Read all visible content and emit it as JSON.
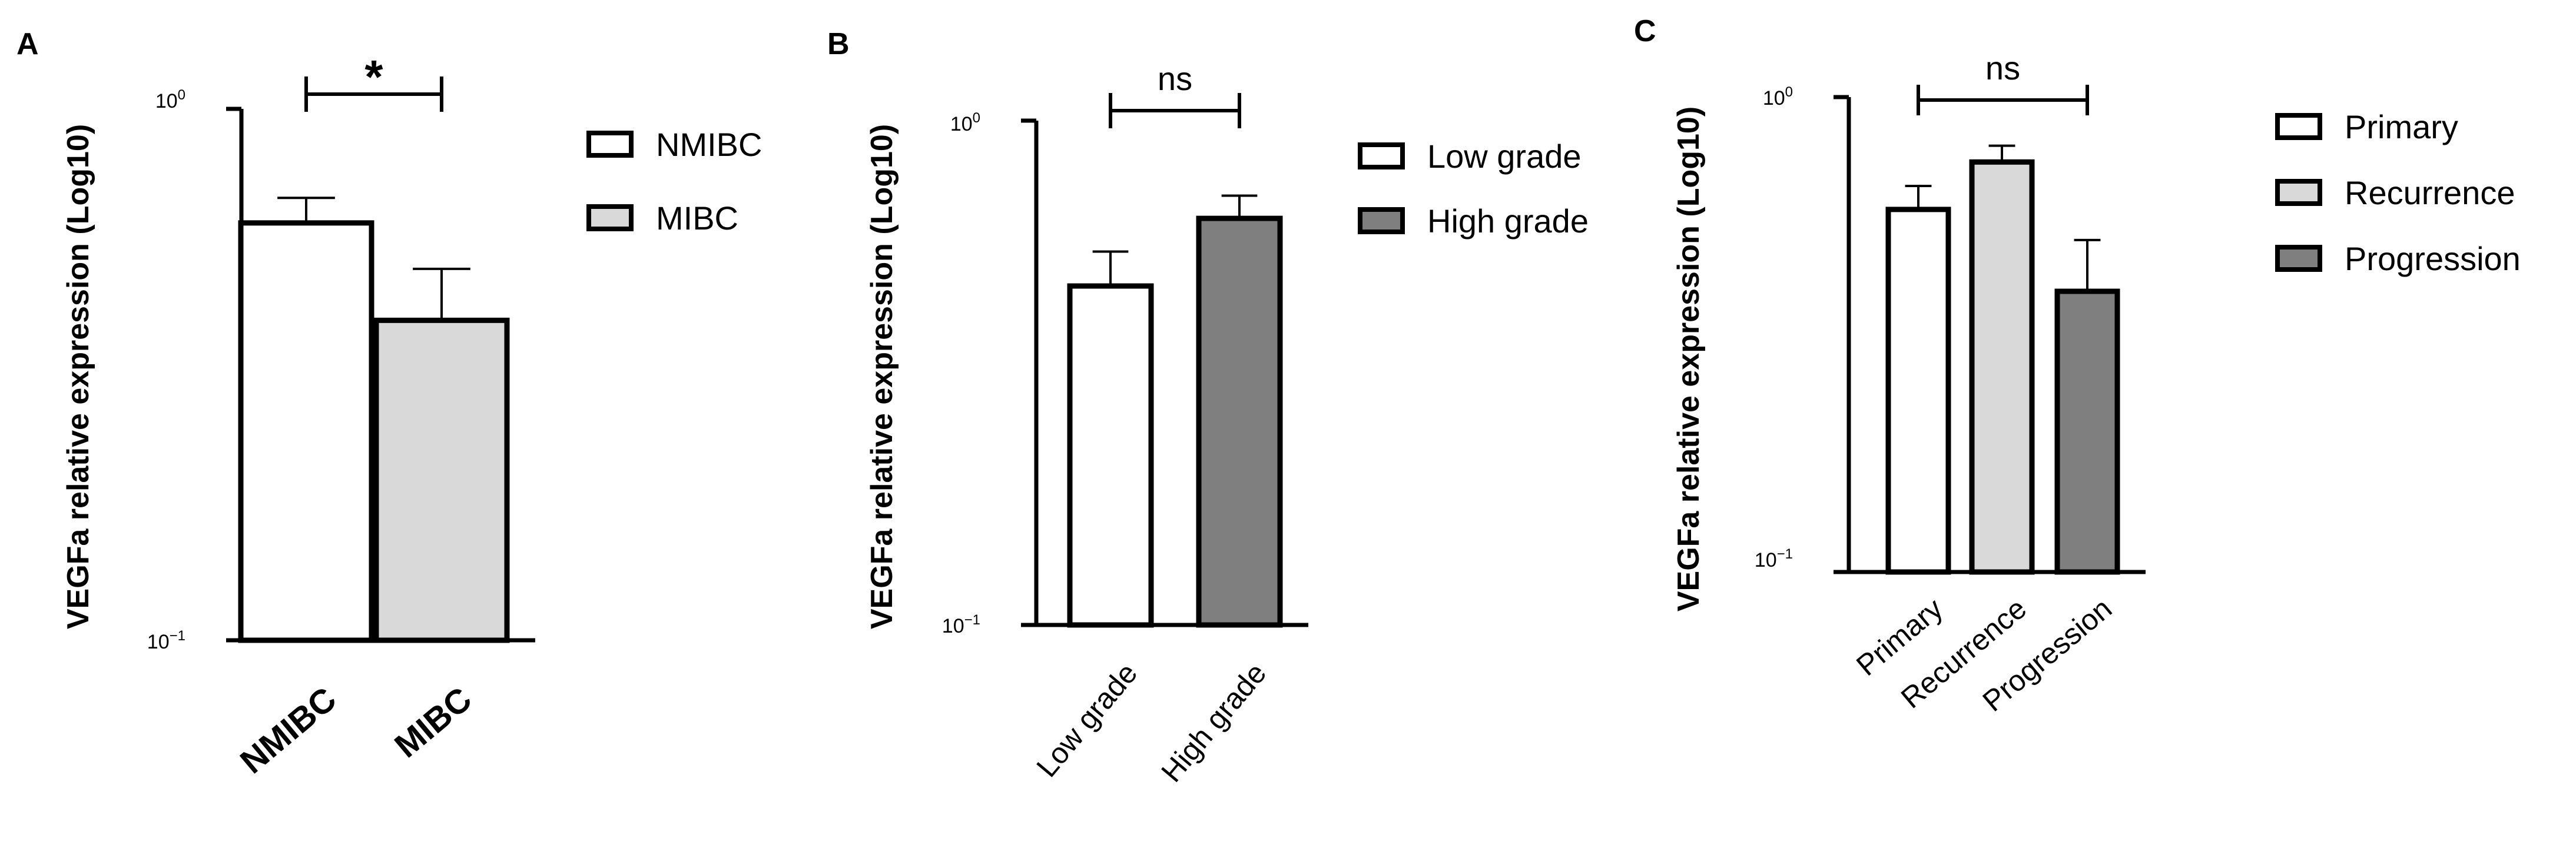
{
  "chart_data": [
    {
      "panel": "A",
      "type": "bar",
      "ylabel": "VEGFa relative expression (Log10)",
      "yscale": "log10",
      "ylim": [
        0.1,
        1
      ],
      "yticks": [
        {
          "base": "10",
          "exp": "0"
        },
        {
          "base": "10",
          "exp": "−1"
        }
      ],
      "categories": [
        "NMIBC",
        "MIBC"
      ],
      "values": [
        0.61,
        0.4
      ],
      "errors": [
        0.07,
        0.1
      ],
      "colors": [
        "#ffffff",
        "#d9d9d9"
      ],
      "legend": [
        "NMIBC",
        "MIBC"
      ],
      "significance": {
        "from": "NMIBC",
        "to": "MIBC",
        "label": "*"
      }
    },
    {
      "panel": "B",
      "type": "bar",
      "ylabel": "VEGFa relative expression (Log10)",
      "yscale": "log10",
      "ylim": [
        0.1,
        1
      ],
      "yticks": [
        {
          "base": "10",
          "exp": "0"
        },
        {
          "base": "10",
          "exp": "−1"
        }
      ],
      "categories": [
        "Low grade",
        "High grade"
      ],
      "values": [
        0.47,
        0.64
      ],
      "errors": [
        0.08,
        0.07
      ],
      "colors": [
        "#ffffff",
        "#7f7f7f"
      ],
      "legend": [
        "Low grade",
        "High grade"
      ],
      "significance": {
        "from": "Low grade",
        "to": "High grade",
        "label": "ns"
      }
    },
    {
      "panel": "C",
      "type": "bar",
      "ylabel": "VEGFa relative expression (Log10)",
      "yscale": "log10",
      "ylim": [
        0.1,
        1
      ],
      "yticks": [
        {
          "base": "10",
          "exp": "0"
        },
        {
          "base": "10",
          "exp": "−1"
        }
      ],
      "categories": [
        "Primary",
        "Recurrence",
        "Progression"
      ],
      "values": [
        0.58,
        0.73,
        0.39
      ],
      "errors": [
        0.07,
        0.06,
        0.11
      ],
      "colors": [
        "#ffffff",
        "#d9d9d9",
        "#7f7f7f"
      ],
      "legend": [
        "Primary",
        "Recurrence",
        "Progression"
      ],
      "significance": {
        "from": "Primary",
        "to": "Progression",
        "label": "ns"
      }
    }
  ]
}
